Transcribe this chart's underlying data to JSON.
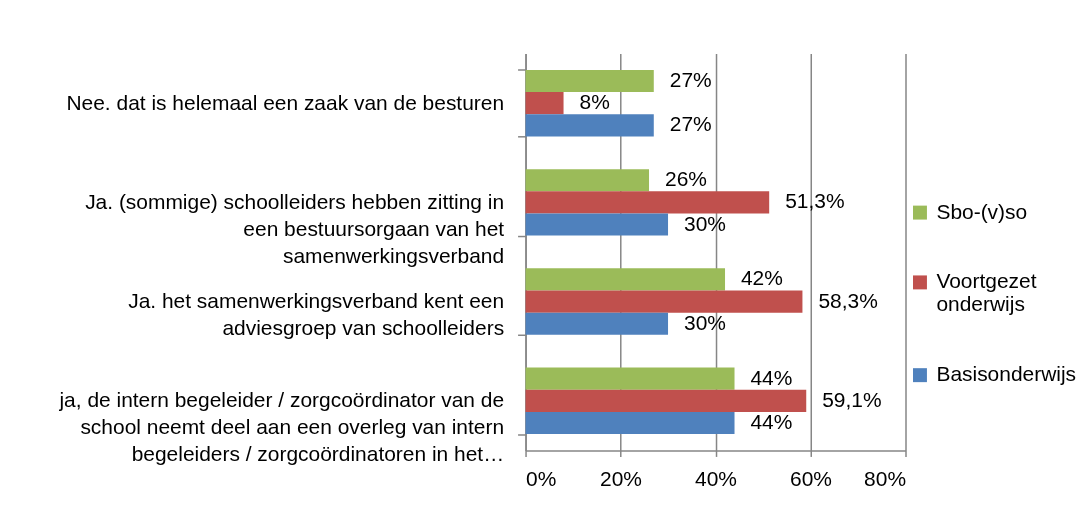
{
  "chart_data": {
    "type": "bar",
    "orientation": "horizontal",
    "categories": [
      "Nee. dat is helemaal een zaak van de besturen",
      "Ja. (sommige) schoolleiders hebben zitting in een bestuursorgaan van het samenwerkingsverband",
      "Ja. het samenwerkingsverband kent een adviesgroep van schoolleiders",
      "ja, de intern begeleider / zorgcoördinator van de school neemt deel aan een overleg van intern begeleiders / zorgcoördinatoren in het…"
    ],
    "series": [
      {
        "name": "Sbo-(v)so",
        "color": "#9bbb59",
        "values": [
          27,
          26,
          42,
          44
        ],
        "value_labels": [
          "27%",
          "26%",
          "42%",
          "44%"
        ]
      },
      {
        "name": "Voortgezet onderwijs",
        "color": "#c0504d",
        "values": [
          8,
          51.3,
          58.3,
          59.1
        ],
        "value_labels": [
          "8%",
          "51,3%",
          "58,3%",
          "59,1%"
        ]
      },
      {
        "name": "Basisonderwijs",
        "color": "#4f81bd",
        "values": [
          27,
          30,
          30,
          44
        ],
        "value_labels": [
          "27%",
          "30%",
          "30%",
          "44%"
        ]
      }
    ],
    "xlim": [
      0,
      80
    ],
    "xticks": [
      {
        "value": 0,
        "label": "0%"
      },
      {
        "value": 20,
        "label": "20%"
      },
      {
        "value": 40,
        "label": "40%"
      },
      {
        "value": 60,
        "label": "60%"
      },
      {
        "value": 80,
        "label": "80%"
      }
    ],
    "grid": "x",
    "legend": "right"
  }
}
